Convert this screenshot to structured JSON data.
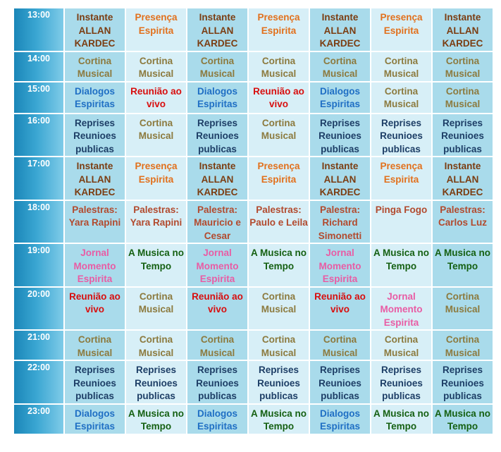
{
  "colors": {
    "brown": "#7b3d12",
    "orange": "#e2701c",
    "olive": "#8c7a3e",
    "blue": "#1f6fc4",
    "red": "#d80e0e",
    "navy": "#1d3e66",
    "rust": "#b24a2e",
    "pink": "#e95ca4",
    "green": "#156012",
    "maroon": "#8e3a35",
    "row_dark_bg": "#a9dbeb",
    "row_light_bg": "#d7eff7",
    "time_bg": "#1b86b8"
  },
  "schedule": {
    "rows": [
      {
        "time": "13:00",
        "cells": [
          {
            "text": "Instante ALLAN KARDEC",
            "color": "brown"
          },
          {
            "text": "Presença Espirita",
            "color": "orange"
          },
          {
            "text": "Instante ALLAN KARDEC",
            "color": "brown"
          },
          {
            "text": "Presença Espirita",
            "color": "orange"
          },
          {
            "text": "Instante ALLAN KARDEC",
            "color": "brown"
          },
          {
            "text": "Presença Espirita",
            "color": "orange"
          },
          {
            "text": "Instante ALLAN KARDEC",
            "color": "brown"
          }
        ]
      },
      {
        "time": "14:00",
        "cells": [
          {
            "text": "Cortina Musical",
            "color": "olive"
          },
          {
            "text": "Cortina Musical",
            "color": "olive"
          },
          {
            "text": "Cortina Musical",
            "color": "olive"
          },
          {
            "text": "Cortina Musical",
            "color": "olive"
          },
          {
            "text": "Cortina Musical",
            "color": "olive"
          },
          {
            "text": "Cortina Musical",
            "color": "olive"
          },
          {
            "text": "Cortina Musical",
            "color": "olive"
          }
        ]
      },
      {
        "time": "15:00",
        "cells": [
          {
            "text": "Dialogos Espiritas",
            "color": "blue"
          },
          {
            "text": "Reunião ao vivo",
            "color": "red"
          },
          {
            "text": "Dialogos Espiritas",
            "color": "blue"
          },
          {
            "text": "Reunião ao vivo",
            "color": "red"
          },
          {
            "text": "Dialogos Espiritas",
            "color": "blue"
          },
          {
            "text": "Cortina Musical",
            "color": "olive"
          },
          {
            "text": "Cortina Musical",
            "color": "olive"
          }
        ]
      },
      {
        "time": "16:00",
        "cells": [
          {
            "text": "Reprises Reunioes publicas",
            "color": "navy"
          },
          {
            "text": "Cortina Musical",
            "color": "olive"
          },
          {
            "text": "Reprises Reunioes publicas",
            "color": "navy"
          },
          {
            "text": "Cortina Musical",
            "color": "olive"
          },
          {
            "text": "Reprises Reunioes publicas",
            "color": "navy"
          },
          {
            "text": "Reprises Reunioes publicas",
            "color": "navy"
          },
          {
            "text": "Reprises Reunioes publicas",
            "color": "navy"
          }
        ]
      },
      {
        "time": "17:00",
        "cells": [
          {
            "text": "Instante ALLAN KARDEC",
            "color": "brown"
          },
          {
            "text": "Presença Espirita",
            "color": "orange"
          },
          {
            "text": "Instante ALLAN KARDEC",
            "color": "brown"
          },
          {
            "text": "Presença Espirita",
            "color": "orange"
          },
          {
            "text": "Instante ALLAN KARDEC",
            "color": "brown"
          },
          {
            "text": "Presença Espirita",
            "color": "orange"
          },
          {
            "text": "Instante ALLAN KARDEC",
            "color": "brown"
          }
        ]
      },
      {
        "time": "18:00",
        "cells": [
          {
            "text": "Palestras: Yara Rapini",
            "color": "rust"
          },
          {
            "text": "Palestras: Yara Rapini",
            "color": "rust"
          },
          {
            "text": "Palestra: Mauricio e Cesar",
            "color": "rust"
          },
          {
            "text": "Palestras: Paulo e Leila",
            "color": "rust"
          },
          {
            "text": "Palestra: Richard Simonetti",
            "color": "rust"
          },
          {
            "text": "Pinga Fogo",
            "color": "rust"
          },
          {
            "text": "Palestras: Carlos Luz",
            "color": "rust"
          }
        ]
      },
      {
        "time": "19:00",
        "cells": [
          {
            "text": "Jornal Momento Espirita",
            "color": "pink"
          },
          {
            "text": "A Musica no Tempo",
            "color": "green"
          },
          {
            "text": "Jornal Momento Espirita",
            "color": "pink"
          },
          {
            "text": "A Musica no Tempo",
            "color": "green"
          },
          {
            "text": "Jornal Momento Espirita",
            "color": "pink"
          },
          {
            "text": "A Musica no Tempo",
            "color": "green"
          },
          {
            "text": "A Musica no Tempo",
            "color": "green"
          }
        ]
      },
      {
        "time": "20:00",
        "cells": [
          {
            "text": "Reunião ao vivo",
            "color": "red"
          },
          {
            "text": "Cortina Musical",
            "color": "olive"
          },
          {
            "text": "Reunião ao vivo",
            "color": "red"
          },
          {
            "text": "Cortina Musical",
            "color": "olive"
          },
          {
            "text": "Reunião ao vivo",
            "color": "red"
          },
          {
            "text": "Jornal Momento Espirita",
            "color": "pink"
          },
          {
            "text": "Cortina Musical",
            "color": "olive"
          }
        ]
      },
      {
        "time": "21:00",
        "cells": [
          {
            "text": "Cortina Musical",
            "color": "olive"
          },
          {
            "text": "Cortina Musical",
            "color": "olive"
          },
          {
            "text": "Cortina Musical",
            "color": "olive"
          },
          {
            "text": "Cortina Musical",
            "color": "olive"
          },
          {
            "text": "Cortina Musical",
            "color": "olive"
          },
          {
            "text": "Cortina Musical",
            "color": "olive"
          },
          {
            "text": "Cortina Musical",
            "color": "olive"
          }
        ]
      },
      {
        "time": "22:00",
        "cells": [
          {
            "text": "Reprises Reunioes publicas",
            "color": "navy"
          },
          {
            "text": "Reprises Reunioes publicas",
            "color": "navy"
          },
          {
            "text": "Reprises Reunioes publicas",
            "color": "navy"
          },
          {
            "text": "Reprises Reunioes publicas",
            "color": "navy"
          },
          {
            "text": "Reprises Reunioes publicas",
            "color": "navy"
          },
          {
            "text": "Reprises Reunioes publicas",
            "color": "navy"
          },
          {
            "text": "Reprises Reunioes publicas",
            "color": "navy"
          }
        ]
      },
      {
        "time": "23:00",
        "cells": [
          {
            "text": "Dialogos Espiritas",
            "color": "blue"
          },
          {
            "text": "A Musica no Tempo",
            "color": "green"
          },
          {
            "text": "Dialogos Espiritas",
            "color": "blue"
          },
          {
            "text": "A Musica no Tempo",
            "color": "green"
          },
          {
            "text": "Dialogos Espiritas",
            "color": "blue"
          },
          {
            "text": "A Musica no Tempo",
            "color": "green"
          },
          {
            "text": "A Musica no Tempo",
            "color": "green"
          }
        ]
      }
    ]
  }
}
